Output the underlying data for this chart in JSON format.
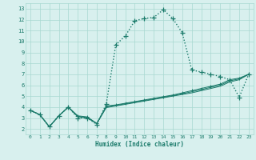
{
  "xlabel": "Humidex (Indice chaleur)",
  "x_values": [
    0,
    1,
    2,
    3,
    4,
    5,
    6,
    7,
    8,
    9,
    10,
    11,
    12,
    13,
    14,
    15,
    16,
    17,
    18,
    19,
    20,
    21,
    22,
    23
  ],
  "line_main": [
    3.7,
    3.3,
    2.2,
    3.2,
    4.0,
    3.0,
    3.0,
    2.4,
    4.3,
    9.7,
    10.5,
    11.9,
    12.1,
    12.2,
    12.9,
    12.1,
    10.8,
    7.4,
    7.2,
    7.0,
    6.8,
    6.5,
    4.9,
    7.0
  ],
  "line_a": [
    3.7,
    3.3,
    2.2,
    3.2,
    4.0,
    3.2,
    3.1,
    2.5,
    4.1,
    4.2,
    4.35,
    4.5,
    4.65,
    4.8,
    4.95,
    5.1,
    5.3,
    5.5,
    5.7,
    5.9,
    6.1,
    6.5,
    6.65,
    7.0
  ],
  "line_b": [
    3.7,
    3.3,
    2.2,
    3.2,
    4.0,
    3.1,
    3.0,
    2.5,
    3.95,
    4.1,
    4.25,
    4.4,
    4.55,
    4.7,
    4.85,
    5.0,
    5.15,
    5.3,
    5.5,
    5.7,
    5.9,
    6.3,
    6.5,
    7.0
  ],
  "line_c": [
    3.7,
    3.3,
    2.2,
    3.2,
    4.0,
    3.15,
    3.05,
    2.5,
    4.02,
    4.15,
    4.3,
    4.45,
    4.6,
    4.75,
    4.9,
    5.05,
    5.22,
    5.4,
    5.6,
    5.8,
    6.0,
    6.4,
    6.58,
    7.0
  ],
  "line_color": "#1a7a6a",
  "bg_color": "#d8f0ee",
  "grid_color": "#a8d8d0",
  "xlim": [
    -0.5,
    23.5
  ],
  "ylim": [
    1.5,
    13.5
  ],
  "yticks": [
    2,
    3,
    4,
    5,
    6,
    7,
    8,
    9,
    10,
    11,
    12,
    13
  ],
  "xticks": [
    0,
    1,
    2,
    3,
    4,
    5,
    6,
    7,
    8,
    9,
    10,
    11,
    12,
    13,
    14,
    15,
    16,
    17,
    18,
    19,
    20,
    21,
    22,
    23
  ]
}
